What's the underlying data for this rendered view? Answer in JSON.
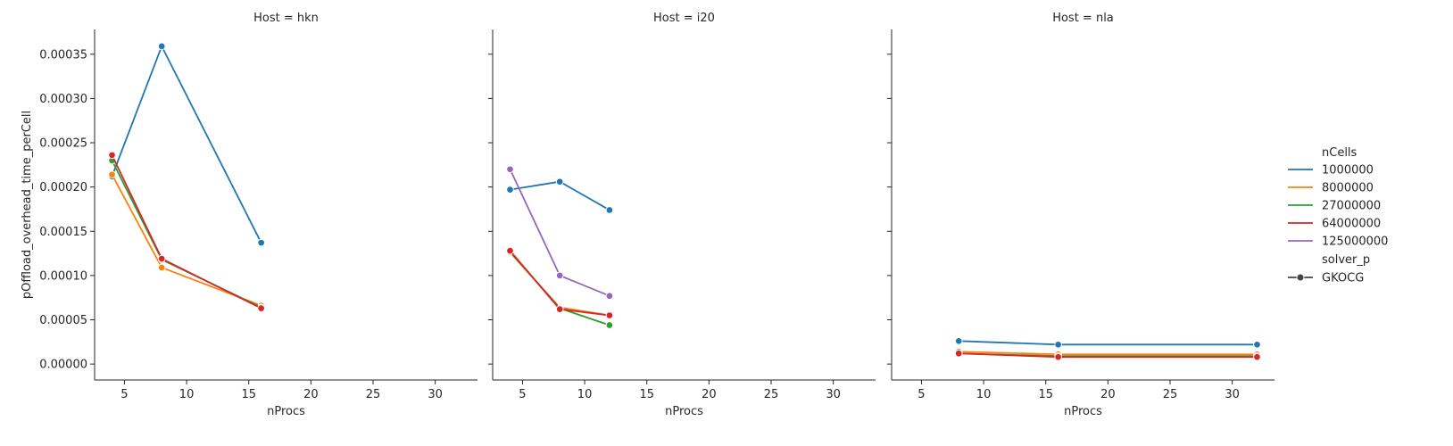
{
  "chart_data": {
    "type": "line",
    "facet_by": "Host",
    "ylabel": "pOffload_overhead_time_perCell",
    "xlabel": "nProcs",
    "xlim": [
      2.6,
      33.4
    ],
    "ylim": [
      -1.8e-05,
      0.000378
    ],
    "xticks": [
      5,
      10,
      15,
      20,
      25,
      30
    ],
    "yticks": [
      0.0,
      5e-05,
      0.0001,
      0.00015,
      0.0002,
      0.00025,
      0.0003,
      0.00035
    ],
    "ytick_labels": [
      "0.00000",
      "0.00005",
      "0.00010",
      "0.00015",
      "0.00020",
      "0.00025",
      "0.00030",
      "0.00035"
    ],
    "legend": {
      "title": "nCells",
      "entries": [
        "1000000",
        "8000000",
        "27000000",
        "64000000",
        "125000000"
      ],
      "style_title": "solver_p",
      "style_entries": [
        "GKOCG"
      ],
      "placement": "right"
    },
    "colors": {
      "1000000": "#1f77b4",
      "8000000": "#ff7f0e",
      "27000000": "#2ca02c",
      "64000000": "#d62728",
      "125000000": "#9467bd"
    },
    "panels": [
      {
        "title": "Host = hkn",
        "series": [
          {
            "name": "1000000",
            "x": [
              4,
              8,
              16
            ],
            "y": [
              0.000212,
              0.000359,
              0.000137
            ]
          },
          {
            "name": "8000000",
            "x": [
              4,
              8,
              16
            ],
            "y": [
              0.000214,
              0.000109,
              6.6e-05
            ]
          },
          {
            "name": "27000000",
            "x": [
              4,
              8,
              16
            ],
            "y": [
              0.00023,
              0.000118,
              6.4e-05
            ]
          },
          {
            "name": "64000000",
            "x": [
              4,
              8,
              16
            ],
            "y": [
              0.000236,
              0.000119,
              6.3e-05
            ]
          }
        ]
      },
      {
        "title": "Host = i20",
        "series": [
          {
            "name": "1000000",
            "x": [
              4,
              8,
              12
            ],
            "y": [
              0.000197,
              0.000206,
              0.000174
            ]
          },
          {
            "name": "8000000",
            "x": [
              4,
              8,
              12
            ],
            "y": [
              0.000126,
              6.4e-05,
              5.5e-05
            ]
          },
          {
            "name": "27000000",
            "x": [
              4,
              8,
              12
            ],
            "y": [
              0.000127,
              6.3e-05,
              4.4e-05
            ]
          },
          {
            "name": "64000000",
            "x": [
              4,
              8,
              12
            ],
            "y": [
              0.000128,
              6.2e-05,
              5.5e-05
            ]
          },
          {
            "name": "125000000",
            "x": [
              4,
              8,
              12
            ],
            "y": [
              0.00022,
              0.0001,
              7.7e-05
            ]
          }
        ]
      },
      {
        "title": "Host = nla",
        "series": [
          {
            "name": "1000000",
            "x": [
              8,
              16,
              32
            ],
            "y": [
              2.6e-05,
              2.2e-05,
              2.2e-05
            ]
          },
          {
            "name": "8000000",
            "x": [
              8,
              16,
              32
            ],
            "y": [
              1.4e-05,
              1.1e-05,
              1.1e-05
            ]
          },
          {
            "name": "27000000",
            "x": [
              8,
              16,
              32
            ],
            "y": [
              1.2e-05,
              9e-06,
              9e-06
            ]
          },
          {
            "name": "64000000",
            "x": [
              8,
              16,
              32
            ],
            "y": [
              1.2e-05,
              8e-06,
              8e-06
            ]
          }
        ]
      }
    ]
  }
}
